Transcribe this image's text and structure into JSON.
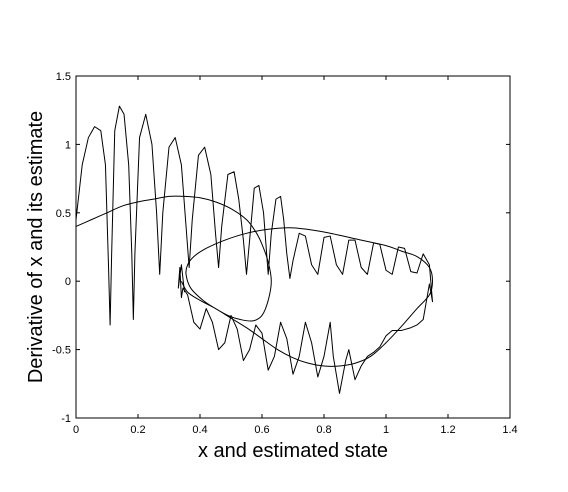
{
  "chart_data": {
    "type": "line",
    "title": "",
    "xlabel": "x and estimated state",
    "ylabel": "Derivative of x and its estimate",
    "xlim": [
      0,
      1.4
    ],
    "ylim": [
      -1,
      1.5
    ],
    "xticks": [
      0,
      0.2,
      0.4,
      0.6,
      0.8,
      1,
      1.2,
      1.4
    ],
    "xtick_labels": [
      "0",
      "0.2",
      "0.4",
      "0.6",
      "0.8",
      "1",
      "1.2",
      "1.4"
    ],
    "yticks": [
      -1,
      -0.5,
      0,
      0.5,
      1,
      1.5
    ],
    "ytick_labels": [
      "-1",
      "-0.5",
      "0",
      "0.5",
      "1",
      "1.5"
    ],
    "grid": false,
    "series": [
      {
        "color": "#000000",
        "style": "smooth phase-plane loop (true state)",
        "points": [
          [
            0.0,
            0.4
          ],
          [
            0.05,
            0.45
          ],
          [
            0.1,
            0.5
          ],
          [
            0.15,
            0.55
          ],
          [
            0.2,
            0.58
          ],
          [
            0.25,
            0.6
          ],
          [
            0.3,
            0.62
          ],
          [
            0.35,
            0.62
          ],
          [
            0.4,
            0.61
          ],
          [
            0.45,
            0.58
          ],
          [
            0.5,
            0.53
          ],
          [
            0.55,
            0.45
          ],
          [
            0.58,
            0.36
          ],
          [
            0.6,
            0.27
          ],
          [
            0.62,
            0.14
          ],
          [
            0.63,
            0.0
          ],
          [
            0.62,
            -0.14
          ],
          [
            0.6,
            -0.25
          ],
          [
            0.57,
            -0.29
          ],
          [
            0.53,
            -0.28
          ],
          [
            0.49,
            -0.25
          ],
          [
            0.45,
            -0.2
          ],
          [
            0.41,
            -0.14
          ],
          [
            0.37,
            -0.05
          ],
          [
            0.355,
            0.05
          ],
          [
            0.36,
            0.12
          ],
          [
            0.38,
            0.18
          ],
          [
            0.42,
            0.24
          ],
          [
            0.48,
            0.3
          ],
          [
            0.55,
            0.35
          ],
          [
            0.62,
            0.38
          ],
          [
            0.7,
            0.39
          ],
          [
            0.8,
            0.36
          ],
          [
            0.9,
            0.31
          ],
          [
            1.0,
            0.26
          ],
          [
            1.05,
            0.22
          ],
          [
            1.1,
            0.18
          ],
          [
            1.14,
            0.1
          ],
          [
            1.15,
            0.0
          ],
          [
            1.14,
            -0.1
          ],
          [
            1.1,
            -0.2
          ],
          [
            1.05,
            -0.33
          ],
          [
            1.0,
            -0.45
          ],
          [
            0.95,
            -0.55
          ],
          [
            0.9,
            -0.6
          ],
          [
            0.85,
            -0.62
          ],
          [
            0.8,
            -0.62
          ],
          [
            0.75,
            -0.6
          ],
          [
            0.7,
            -0.56
          ],
          [
            0.65,
            -0.5
          ],
          [
            0.6,
            -0.42
          ],
          [
            0.55,
            -0.34
          ],
          [
            0.5,
            -0.27
          ],
          [
            0.45,
            -0.2
          ],
          [
            0.4,
            -0.14
          ],
          [
            0.36,
            -0.08
          ],
          [
            0.34,
            0.0
          ]
        ]
      },
      {
        "color": "#000000",
        "style": "oscillatory estimate trajectory",
        "points": [
          [
            0.0,
            0.45
          ],
          [
            0.02,
            0.85
          ],
          [
            0.04,
            1.05
          ],
          [
            0.06,
            1.13
          ],
          [
            0.08,
            1.1
          ],
          [
            0.095,
            0.85
          ],
          [
            0.105,
            0.1
          ],
          [
            0.11,
            -0.32
          ],
          [
            0.115,
            0.2
          ],
          [
            0.125,
            1.1
          ],
          [
            0.14,
            1.28
          ],
          [
            0.155,
            1.22
          ],
          [
            0.17,
            0.85
          ],
          [
            0.18,
            0.2
          ],
          [
            0.185,
            -0.28
          ],
          [
            0.19,
            0.2
          ],
          [
            0.205,
            1.05
          ],
          [
            0.225,
            1.22
          ],
          [
            0.245,
            1.0
          ],
          [
            0.26,
            0.5
          ],
          [
            0.27,
            0.05
          ],
          [
            0.28,
            0.5
          ],
          [
            0.3,
            0.98
          ],
          [
            0.32,
            1.05
          ],
          [
            0.34,
            0.85
          ],
          [
            0.355,
            0.4
          ],
          [
            0.365,
            0.1
          ],
          [
            0.375,
            0.45
          ],
          [
            0.395,
            0.92
          ],
          [
            0.415,
            0.98
          ],
          [
            0.435,
            0.78
          ],
          [
            0.45,
            0.35
          ],
          [
            0.46,
            0.1
          ],
          [
            0.47,
            0.4
          ],
          [
            0.49,
            0.78
          ],
          [
            0.51,
            0.8
          ],
          [
            0.525,
            0.6
          ],
          [
            0.54,
            0.3
          ],
          [
            0.55,
            0.05
          ],
          [
            0.56,
            0.3
          ],
          [
            0.575,
            0.68
          ],
          [
            0.59,
            0.7
          ],
          [
            0.605,
            0.5
          ],
          [
            0.615,
            0.2
          ],
          [
            0.62,
            0.05
          ],
          [
            0.63,
            0.35
          ],
          [
            0.645,
            0.6
          ],
          [
            0.66,
            0.62
          ],
          [
            0.67,
            0.45
          ],
          [
            0.68,
            0.2
          ],
          [
            0.69,
            0.02
          ],
          [
            0.7,
            0.15
          ],
          [
            0.72,
            0.35
          ],
          [
            0.74,
            0.33
          ],
          [
            0.76,
            0.12
          ],
          [
            0.78,
            0.05
          ],
          [
            0.8,
            0.32
          ],
          [
            0.82,
            0.33
          ],
          [
            0.84,
            0.12
          ],
          [
            0.86,
            0.05
          ],
          [
            0.88,
            0.3
          ],
          [
            0.9,
            0.3
          ],
          [
            0.92,
            0.1
          ],
          [
            0.94,
            0.05
          ],
          [
            0.96,
            0.28
          ],
          [
            0.98,
            0.27
          ],
          [
            1.0,
            0.08
          ],
          [
            1.02,
            0.05
          ],
          [
            1.04,
            0.25
          ],
          [
            1.06,
            0.24
          ],
          [
            1.08,
            0.07
          ],
          [
            1.1,
            0.06
          ],
          [
            1.12,
            0.2
          ],
          [
            1.14,
            0.12
          ],
          [
            1.15,
            -0.15
          ],
          [
            1.14,
            -0.02
          ],
          [
            1.12,
            -0.28
          ],
          [
            1.1,
            -0.32
          ],
          [
            1.08,
            -0.34
          ],
          [
            1.05,
            -0.36
          ],
          [
            1.02,
            -0.36
          ],
          [
            1.0,
            -0.4
          ],
          [
            0.98,
            -0.48
          ],
          [
            0.96,
            -0.52
          ],
          [
            0.94,
            -0.55
          ],
          [
            0.92,
            -0.62
          ],
          [
            0.9,
            -0.72
          ],
          [
            0.88,
            -0.5
          ],
          [
            0.87,
            -0.58
          ],
          [
            0.85,
            -0.82
          ],
          [
            0.83,
            -0.55
          ],
          [
            0.82,
            -0.3
          ],
          [
            0.8,
            -0.55
          ],
          [
            0.78,
            -0.7
          ],
          [
            0.76,
            -0.45
          ],
          [
            0.74,
            -0.3
          ],
          [
            0.72,
            -0.55
          ],
          [
            0.7,
            -0.68
          ],
          [
            0.68,
            -0.42
          ],
          [
            0.66,
            -0.3
          ],
          [
            0.64,
            -0.55
          ],
          [
            0.62,
            -0.65
          ],
          [
            0.6,
            -0.38
          ],
          [
            0.58,
            -0.32
          ],
          [
            0.56,
            -0.5
          ],
          [
            0.54,
            -0.58
          ],
          [
            0.52,
            -0.35
          ],
          [
            0.5,
            -0.25
          ],
          [
            0.48,
            -0.45
          ],
          [
            0.46,
            -0.5
          ],
          [
            0.44,
            -0.3
          ],
          [
            0.42,
            -0.2
          ],
          [
            0.4,
            -0.35
          ],
          [
            0.38,
            -0.3
          ],
          [
            0.36,
            -0.1
          ],
          [
            0.345,
            -0.05
          ],
          [
            0.34,
            -0.12
          ],
          [
            0.335,
            0.1
          ],
          [
            0.33,
            -0.05
          ],
          [
            0.34,
            0.12
          ],
          [
            0.35,
            -0.08
          ]
        ]
      }
    ]
  }
}
